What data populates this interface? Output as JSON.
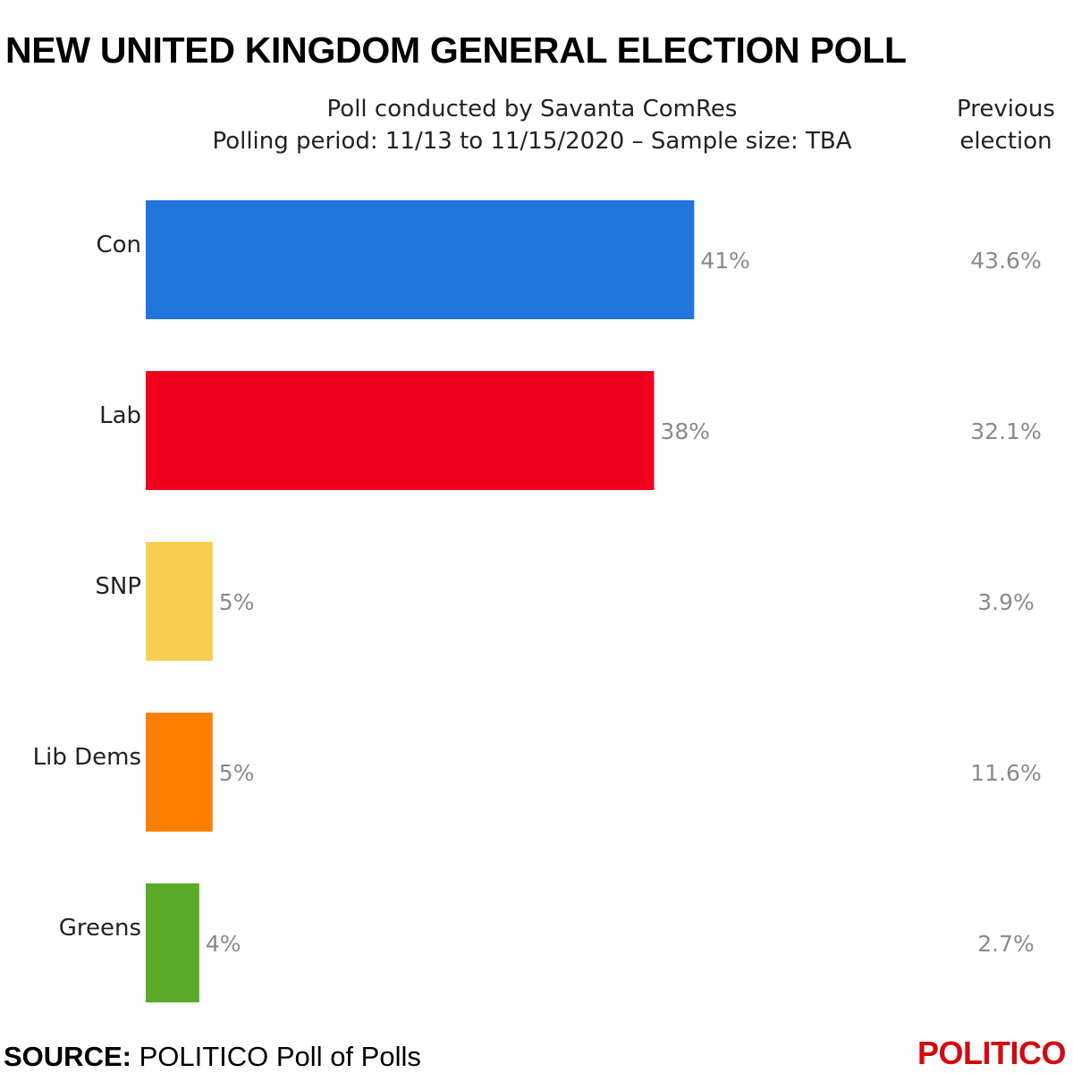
{
  "title": "NEW UNITED KINGDOM GENERAL ELECTION POLL",
  "subtitle_line1": "Poll conducted by Savanta ComRes",
  "subtitle_line2": "Polling period: 11/13 to 11/15/2020 – Sample size: TBA",
  "previous_header_line1": "Previous",
  "previous_header_line2": "election",
  "source_label": "SOURCE:",
  "source_text": "POLITICO Poll of Polls",
  "logo_text": "POLITICO",
  "chart_data": {
    "type": "bar",
    "orientation": "horizontal",
    "title": "NEW UNITED KINGDOM GENERAL ELECTION POLL",
    "categories": [
      "Con",
      "Lab",
      "SNP",
      "Lib Dems",
      "Greens"
    ],
    "values": [
      41,
      38,
      5,
      5,
      4
    ],
    "value_labels": [
      "41%",
      "38%",
      "5%",
      "5%",
      "4%"
    ],
    "previous_election": [
      "43.6%",
      "32.1%",
      "3.9%",
      "11.6%",
      "2.7%"
    ],
    "colors": [
      "#2176d9",
      "#ef001c",
      "#f9cf51",
      "#ff8000",
      "#5aab27"
    ],
    "xlim": [
      0,
      100
    ],
    "unit": "%"
  }
}
